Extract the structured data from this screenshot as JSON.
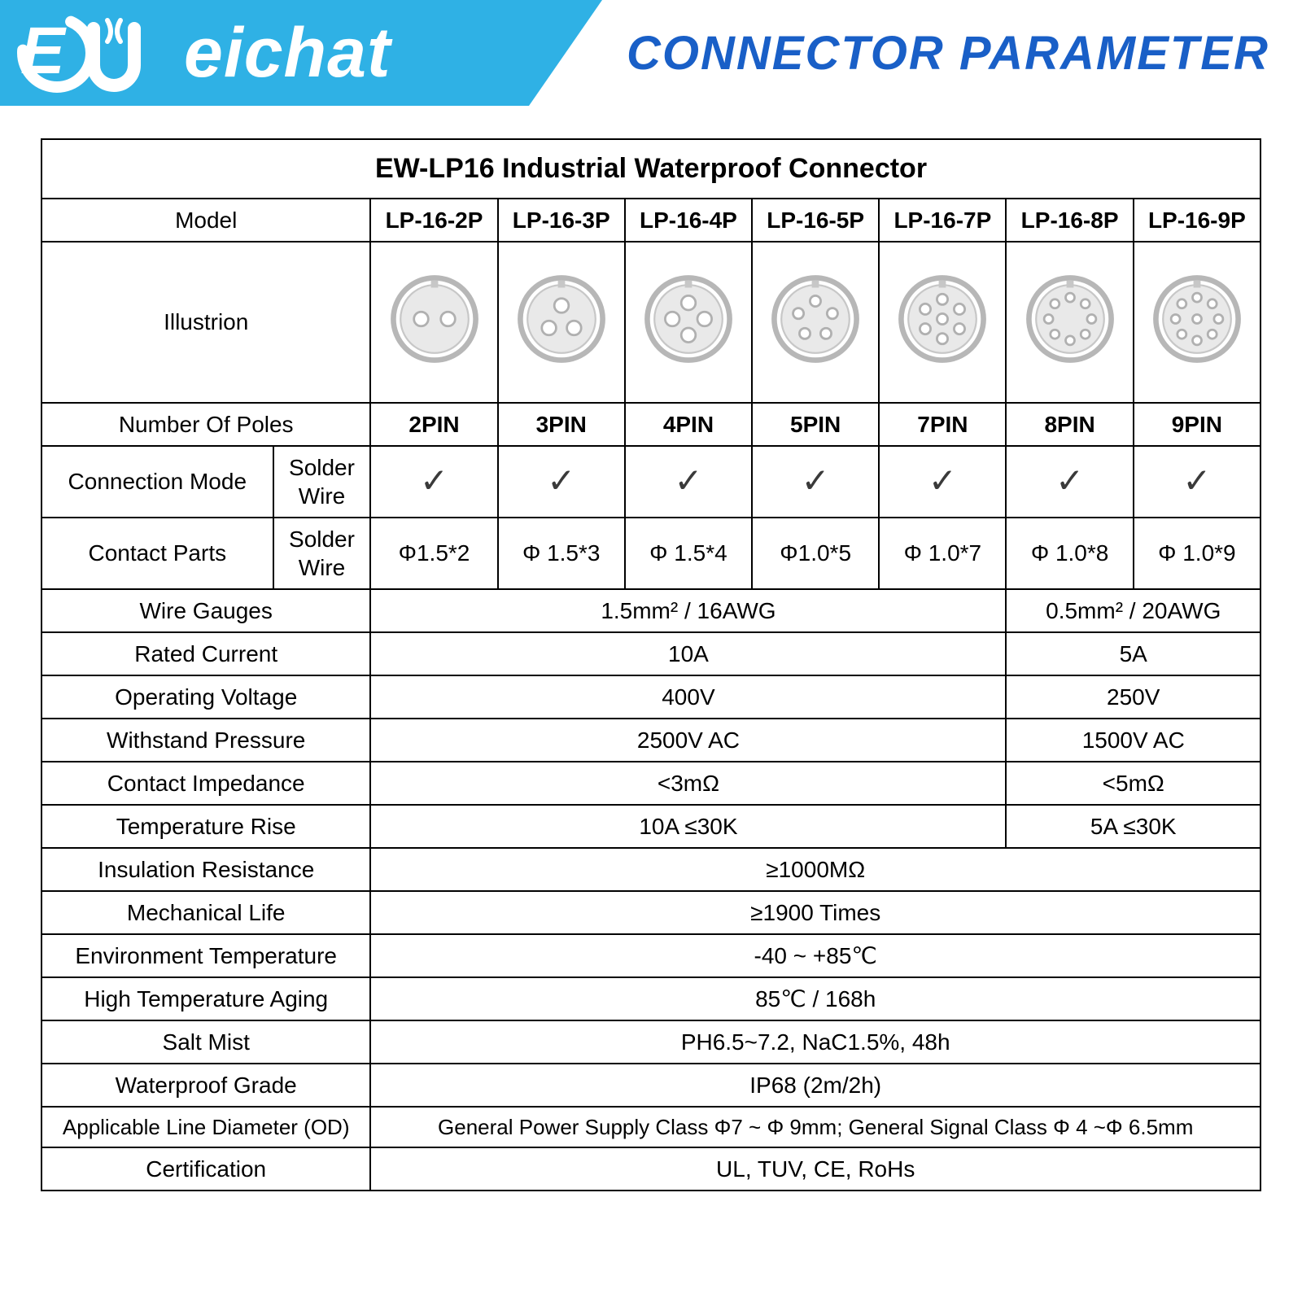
{
  "header": {
    "brand": "eichat",
    "title": "CONNECTOR PARAMETER",
    "brand_bg": "#2fb1e5",
    "title_color": "#195fc7"
  },
  "table": {
    "title": "EW-LP16 Industrial Waterproof Connector",
    "model_label": "Model",
    "models": [
      "LP-16-2P",
      "LP-16-3P",
      "LP-16-4P",
      "LP-16-5P",
      "LP-16-7P",
      "LP-16-8P",
      "LP-16-9P"
    ],
    "illustration_label": "Illustrion",
    "pin_counts": [
      2,
      3,
      4,
      5,
      7,
      8,
      9
    ],
    "poles_label": "Number Of Poles",
    "poles": [
      "2PIN",
      "3PIN",
      "4PIN",
      "5PIN",
      "7PIN",
      "8PIN",
      "9PIN"
    ],
    "conn_mode_label": "Connection Mode",
    "conn_mode_sub": "Solder Wire",
    "contact_parts_label": "Contact Parts",
    "contact_parts_sub": "Solder Wire",
    "contact_parts": [
      "Φ1.5*2",
      "Φ 1.5*3",
      "Φ 1.5*4",
      "Φ1.0*5",
      "Φ 1.0*7",
      "Φ 1.0*8",
      "Φ 1.0*9"
    ],
    "wire_gauges_label": "Wire Gauges",
    "wire_gauges_a": "1.5mm² / 16AWG",
    "wire_gauges_b": "0.5mm² / 20AWG",
    "rated_current_label": "Rated Current",
    "rated_current_a": "10A",
    "rated_current_b": "5A",
    "op_voltage_label": "Operating Voltage",
    "op_voltage_a": "400V",
    "op_voltage_b": "250V",
    "withstand_label": "Withstand Pressure",
    "withstand_a": "2500V AC",
    "withstand_b": "1500V AC",
    "impedance_label": "Contact Impedance",
    "impedance_a": "<3mΩ",
    "impedance_b": "<5mΩ",
    "temp_rise_label": "Temperature Rise",
    "temp_rise_a": "10A ≤30K",
    "temp_rise_b": "5A ≤30K",
    "insulation_label": "Insulation Resistance",
    "insulation_v": "≥1000MΩ",
    "mech_life_label": "Mechanical Life",
    "mech_life_v": "≥1900 Times",
    "env_temp_label": "Environment Temperature",
    "env_temp_v": "-40 ~ +85℃",
    "hta_label": "High Temperature Aging",
    "hta_v": "85℃ / 168h",
    "salt_label": "Salt Mist",
    "salt_v": "PH6.5~7.2, NaC1.5%, 48h",
    "wp_label": "Waterproof Grade",
    "wp_v": "IP68 (2m/2h)",
    "od_label": "Applicable Line Diameter (OD)",
    "od_v": "General Power Supply Class Φ7 ~ Φ 9mm; General Signal Class Φ 4 ~Φ  6.5mm",
    "cert_label": "Certification",
    "cert_v": "UL, TUV, CE, RoHs"
  },
  "style": {
    "border_color": "#000000",
    "table_font_size": 28,
    "title_font_size": 34,
    "illus_stroke": "#b7b7b7",
    "illus_fill": "#e9e9e9"
  }
}
